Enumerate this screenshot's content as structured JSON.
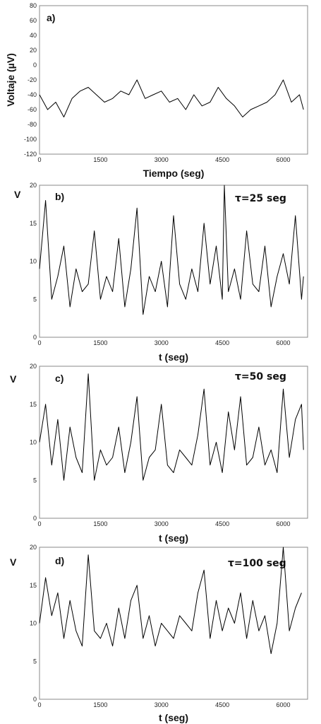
{
  "charts": [
    {
      "panel_label": "a)",
      "xlabel": "Tiempo (seg)",
      "ylabel": "Voltaje (µV)",
      "tau_label": "",
      "x_ticks": [
        "0",
        "1500",
        "3000",
        "4500",
        "6000"
      ],
      "y_ticks": [
        "80",
        "60",
        "40",
        "20",
        "0",
        "-20",
        "-40",
        "-60",
        "-80",
        "-100",
        "-120"
      ]
    },
    {
      "panel_label": "b)",
      "xlabel": "t (seg)",
      "ylabel": "V",
      "tau_label": "τ=25 seg",
      "x_ticks": [
        "0",
        "1500",
        "3000",
        "4500",
        "6000"
      ],
      "y_ticks": [
        "20",
        "15",
        "10",
        "5",
        "0"
      ]
    },
    {
      "panel_label": "c)",
      "xlabel": "t (seg)",
      "ylabel": "V",
      "tau_label": "τ=50 seg",
      "x_ticks": [
        "0",
        "1500",
        "3000",
        "4500",
        "6000"
      ],
      "y_ticks": [
        "20",
        "15",
        "10",
        "5",
        "0"
      ]
    },
    {
      "panel_label": "d)",
      "xlabel": "t (seg)",
      "ylabel": "V",
      "tau_label": "τ=100 seg",
      "x_ticks": [
        "0",
        "1500",
        "3000",
        "4500",
        "6000"
      ],
      "y_ticks": [
        "20",
        "15",
        "10",
        "5",
        "0"
      ]
    }
  ],
  "chart_data": [
    {
      "type": "line",
      "xlabel": "Tiempo (seg)",
      "ylabel": "Voltaje (µV)",
      "xlim": [
        0,
        6600
      ],
      "ylim": [
        -120,
        80
      ],
      "grid": false,
      "series": [
        {
          "x": [
            0,
            200,
            400,
            600,
            800,
            1000,
            1200,
            1400,
            1600,
            1800,
            2000,
            2200,
            2400,
            2600,
            2800,
            3000,
            3200,
            3400,
            3600,
            3800,
            4000,
            4200,
            4400,
            4600,
            4800,
            5000,
            5200,
            5400,
            5600,
            5800,
            6000,
            6200,
            6400,
            6500
          ],
          "y": [
            -40,
            -60,
            -50,
            -70,
            -45,
            -35,
            -30,
            -40,
            -50,
            -45,
            -35,
            -40,
            -20,
            -45,
            -40,
            -35,
            -50,
            -45,
            -60,
            -40,
            -55,
            -50,
            -30,
            -45,
            -55,
            -70,
            -60,
            -55,
            -50,
            -40,
            -20,
            -50,
            -40,
            -60
          ]
        }
      ]
    },
    {
      "type": "line",
      "xlabel": "t (seg)",
      "ylabel": "V",
      "annotation": "τ=25 seg",
      "xlim": [
        0,
        6600
      ],
      "ylim": [
        0,
        20
      ],
      "grid": false,
      "series": [
        {
          "x": [
            0,
            150,
            300,
            450,
            600,
            750,
            900,
            1050,
            1200,
            1350,
            1500,
            1650,
            1800,
            1950,
            2100,
            2250,
            2400,
            2550,
            2700,
            2850,
            3000,
            3150,
            3300,
            3450,
            3600,
            3750,
            3900,
            4050,
            4200,
            4350,
            4500,
            4550,
            4650,
            4800,
            4950,
            5100,
            5250,
            5400,
            5550,
            5700,
            5850,
            6000,
            6150,
            6300,
            6450,
            6500
          ],
          "y": [
            9,
            18,
            5,
            8,
            12,
            4,
            9,
            6,
            7,
            14,
            5,
            8,
            6,
            13,
            4,
            9,
            17,
            3,
            8,
            6,
            10,
            4,
            16,
            7,
            5,
            9,
            6,
            15,
            7,
            12,
            5,
            20,
            6,
            9,
            5,
            14,
            7,
            6,
            12,
            4,
            8,
            11,
            7,
            16,
            5,
            8
          ]
        }
      ]
    },
    {
      "type": "line",
      "xlabel": "t (seg)",
      "ylabel": "V",
      "annotation": "τ=50 seg",
      "xlim": [
        0,
        6600
      ],
      "ylim": [
        0,
        20
      ],
      "grid": false,
      "series": [
        {
          "x": [
            0,
            150,
            300,
            450,
            600,
            750,
            900,
            1050,
            1200,
            1350,
            1500,
            1650,
            1800,
            1950,
            2100,
            2250,
            2400,
            2550,
            2700,
            2850,
            3000,
            3150,
            3300,
            3450,
            3600,
            3750,
            3900,
            4050,
            4200,
            4350,
            4500,
            4650,
            4800,
            4950,
            5100,
            5250,
            5400,
            5550,
            5700,
            5850,
            6000,
            6150,
            6300,
            6450,
            6500
          ],
          "y": [
            10,
            15,
            7,
            13,
            5,
            12,
            8,
            6,
            19,
            5,
            9,
            7,
            8,
            12,
            6,
            10,
            16,
            5,
            8,
            9,
            15,
            7,
            6,
            9,
            8,
            7,
            11,
            17,
            7,
            10,
            6,
            14,
            9,
            16,
            7,
            8,
            12,
            7,
            9,
            6,
            17,
            8,
            13,
            15,
            9
          ]
        }
      ]
    },
    {
      "type": "line",
      "xlabel": "t (seg)",
      "ylabel": "V",
      "annotation": "τ=100 seg",
      "xlim": [
        0,
        6600
      ],
      "ylim": [
        0,
        20
      ],
      "grid": false,
      "series": [
        {
          "x": [
            0,
            150,
            300,
            450,
            600,
            750,
            900,
            1050,
            1200,
            1350,
            1500,
            1650,
            1800,
            1950,
            2100,
            2250,
            2400,
            2550,
            2700,
            2850,
            3000,
            3150,
            3300,
            3450,
            3600,
            3750,
            3900,
            4050,
            4200,
            4350,
            4500,
            4650,
            4800,
            4950,
            5100,
            5250,
            5400,
            5550,
            5700,
            5850,
            6000,
            6150,
            6300,
            6450
          ],
          "y": [
            10,
            16,
            11,
            14,
            8,
            13,
            9,
            7,
            19,
            9,
            8,
            10,
            7,
            12,
            8,
            13,
            15,
            8,
            11,
            7,
            10,
            9,
            8,
            11,
            10,
            9,
            14,
            17,
            8,
            13,
            9,
            12,
            10,
            14,
            8,
            13,
            9,
            11,
            6,
            10,
            20,
            9,
            12,
            14
          ]
        }
      ]
    }
  ]
}
